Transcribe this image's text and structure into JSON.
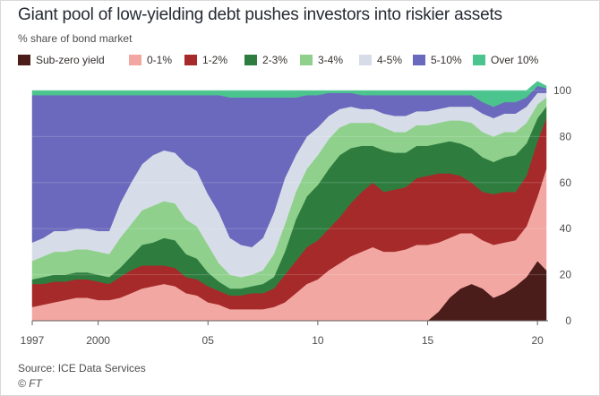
{
  "title": "Giant pool of low-yielding debt pushes investors into riskier assets",
  "subtitle": "% share of bond market",
  "source": "Source: ICE Data Services",
  "credit": "© FT",
  "chart_data": {
    "type": "area",
    "stacking": "percent",
    "ylabel": "% share of bond market",
    "ylim": [
      0,
      100
    ],
    "yticks": [
      0,
      20,
      40,
      60,
      80,
      100
    ],
    "y_axis_side": "right",
    "xlim": [
      1997.0,
      2020.4
    ],
    "xticks": [
      {
        "value": 1997,
        "label": "1997"
      },
      {
        "value": 2000,
        "label": "2000"
      },
      {
        "value": 2005,
        "label": "05"
      },
      {
        "value": 2010,
        "label": "10"
      },
      {
        "value": 2015,
        "label": "15"
      },
      {
        "value": 2020,
        "label": "20"
      }
    ],
    "legend_position": "top",
    "x": [
      1997.0,
      1997.5,
      1998.0,
      1998.5,
      1999.0,
      1999.5,
      2000.0,
      2000.5,
      2001.0,
      2001.5,
      2002.0,
      2002.5,
      2003.0,
      2003.5,
      2004.0,
      2004.5,
      2005.0,
      2005.5,
      2006.0,
      2006.5,
      2007.0,
      2007.5,
      2008.0,
      2008.5,
      2009.0,
      2009.5,
      2010.0,
      2010.5,
      2011.0,
      2011.5,
      2012.0,
      2012.5,
      2013.0,
      2013.5,
      2014.0,
      2014.5,
      2015.0,
      2015.5,
      2016.0,
      2016.5,
      2017.0,
      2017.5,
      2018.0,
      2018.5,
      2019.0,
      2019.5,
      2020.0,
      2020.4
    ],
    "series": [
      {
        "name": "Sub-zero yield",
        "color": "#4a1c1a",
        "values": [
          0,
          0,
          0,
          0,
          0,
          0,
          0,
          0,
          0,
          0,
          0,
          0,
          0,
          0,
          0,
          0,
          0,
          0,
          0,
          0,
          0,
          0,
          0,
          0,
          0,
          0,
          0,
          0,
          0,
          0,
          0,
          0,
          0,
          0,
          0,
          0,
          0,
          4,
          10,
          14,
          16,
          14,
          10,
          12,
          15,
          19,
          26,
          22
        ]
      },
      {
        "name": "0-1%",
        "color": "#f2a7a2",
        "values": [
          6,
          7,
          8,
          9,
          10,
          10,
          9,
          9,
          10,
          12,
          14,
          15,
          16,
          15,
          12,
          11,
          8,
          7,
          5,
          5,
          5,
          5,
          6,
          8,
          12,
          16,
          18,
          22,
          25,
          28,
          30,
          32,
          30,
          30,
          31,
          33,
          33,
          30,
          26,
          24,
          22,
          21,
          23,
          22,
          20,
          22,
          28,
          44
        ]
      },
      {
        "name": "1-2%",
        "color": "#a62a2a",
        "values": [
          10,
          9,
          9,
          8,
          8,
          8,
          8,
          7,
          9,
          10,
          10,
          9,
          8,
          8,
          7,
          7,
          7,
          6,
          6,
          6,
          7,
          7,
          8,
          12,
          14,
          16,
          17,
          18,
          20,
          23,
          26,
          28,
          26,
          27,
          27,
          29,
          30,
          30,
          28,
          25,
          22,
          21,
          22,
          22,
          21,
          22,
          24,
          22
        ]
      },
      {
        "name": "2-3%",
        "color": "#2e7d3f",
        "values": [
          2,
          3,
          3,
          3,
          3,
          3,
          3,
          3,
          4,
          6,
          9,
          10,
          12,
          12,
          10,
          9,
          6,
          4,
          3,
          3,
          3,
          4,
          5,
          10,
          18,
          22,
          24,
          26,
          27,
          24,
          20,
          16,
          18,
          16,
          15,
          14,
          13,
          13,
          14,
          14,
          15,
          15,
          14,
          15,
          16,
          14,
          10,
          5
        ]
      },
      {
        "name": "3-4%",
        "color": "#8fd18c",
        "values": [
          8,
          9,
          10,
          10,
          10,
          10,
          10,
          10,
          13,
          14,
          15,
          16,
          16,
          16,
          15,
          14,
          12,
          8,
          6,
          5,
          5,
          6,
          10,
          12,
          12,
          12,
          13,
          13,
          12,
          11,
          10,
          10,
          10,
          9,
          9,
          9,
          9,
          9,
          9,
          10,
          11,
          11,
          11,
          11,
          10,
          9,
          6,
          4
        ]
      },
      {
        "name": "4-5%",
        "color": "#d7dde8",
        "values": [
          8,
          8,
          9,
          9,
          9,
          9,
          9,
          10,
          15,
          18,
          20,
          22,
          22,
          22,
          24,
          24,
          22,
          22,
          16,
          14,
          12,
          14,
          18,
          20,
          16,
          14,
          12,
          10,
          8,
          7,
          6,
          6,
          6,
          7,
          7,
          6,
          6,
          6,
          6,
          6,
          7,
          8,
          8,
          8,
          8,
          7,
          5,
          2
        ]
      },
      {
        "name": "5-10%",
        "color": "#6b69bd",
        "values": [
          64,
          62,
          59,
          59,
          58,
          58,
          59,
          59,
          47,
          38,
          30,
          26,
          24,
          25,
          30,
          33,
          43,
          51,
          61,
          64,
          65,
          61,
          50,
          35,
          25,
          18,
          14,
          10,
          7,
          6,
          6,
          6,
          8,
          9,
          9,
          7,
          7,
          6,
          5,
          5,
          5,
          5,
          5,
          5,
          5,
          4,
          3,
          2
        ]
      },
      {
        "name": "Over 10%",
        "color": "#4bc48e",
        "values": [
          2,
          2,
          2,
          2,
          2,
          2,
          2,
          2,
          2,
          2,
          2,
          2,
          2,
          2,
          2,
          2,
          2,
          2,
          3,
          3,
          3,
          3,
          3,
          3,
          3,
          2,
          2,
          1,
          1,
          1,
          2,
          2,
          2,
          2,
          2,
          2,
          2,
          2,
          2,
          2,
          2,
          5,
          7,
          5,
          5,
          3,
          2,
          1
        ]
      }
    ]
  }
}
